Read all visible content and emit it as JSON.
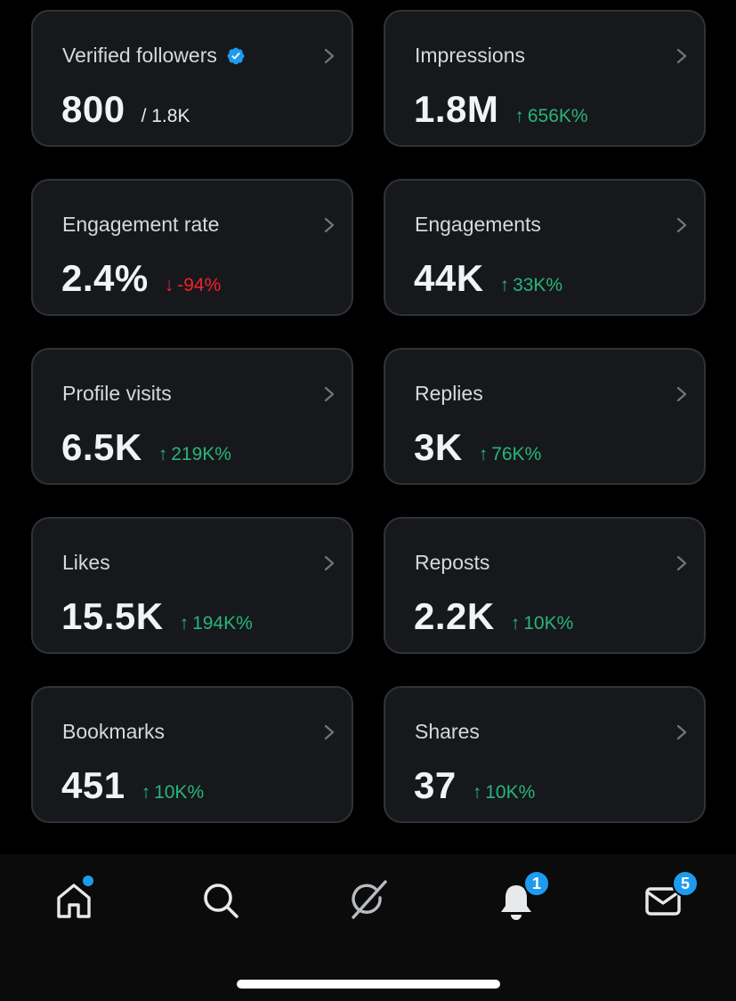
{
  "colors": {
    "background": "#000000",
    "card_bg": "#16181c",
    "card_border": "#2f3336",
    "positive": "#27b57a",
    "negative": "#f4212e",
    "accent": "#1d9bf0"
  },
  "metrics": [
    {
      "label": "Verified followers",
      "value": "800",
      "sub": "/ 1.8K",
      "delta": "",
      "trend": "none",
      "verified_icon": "verified-badge-icon"
    },
    {
      "label": "Impressions",
      "value": "1.8M",
      "sub": "",
      "delta": "656K%",
      "trend": "up"
    },
    {
      "label": "Engagement rate",
      "value": "2.4%",
      "sub": "",
      "delta": "-94%",
      "trend": "down"
    },
    {
      "label": "Engagements",
      "value": "44K",
      "sub": "",
      "delta": "33K%",
      "trend": "up"
    },
    {
      "label": "Profile visits",
      "value": "6.5K",
      "sub": "",
      "delta": "219K%",
      "trend": "up"
    },
    {
      "label": "Replies",
      "value": "3K",
      "sub": "",
      "delta": "76K%",
      "trend": "up"
    },
    {
      "label": "Likes",
      "value": "15.5K",
      "sub": "",
      "delta": "194K%",
      "trend": "up"
    },
    {
      "label": "Reposts",
      "value": "2.2K",
      "sub": "",
      "delta": "10K%",
      "trend": "up"
    },
    {
      "label": "Bookmarks",
      "value": "451",
      "sub": "",
      "delta": "10K%",
      "trend": "up"
    },
    {
      "label": "Shares",
      "value": "37",
      "sub": "",
      "delta": "10K%",
      "trend": "up"
    }
  ],
  "tabbar": {
    "tabs": [
      {
        "name": "home",
        "icon": "home-icon",
        "has_dot": true
      },
      {
        "name": "search",
        "icon": "search-icon"
      },
      {
        "name": "grok",
        "icon": "grok-icon"
      },
      {
        "name": "notifications",
        "icon": "bell-icon",
        "badge": "1"
      },
      {
        "name": "messages",
        "icon": "mail-icon",
        "badge": "5"
      }
    ]
  }
}
